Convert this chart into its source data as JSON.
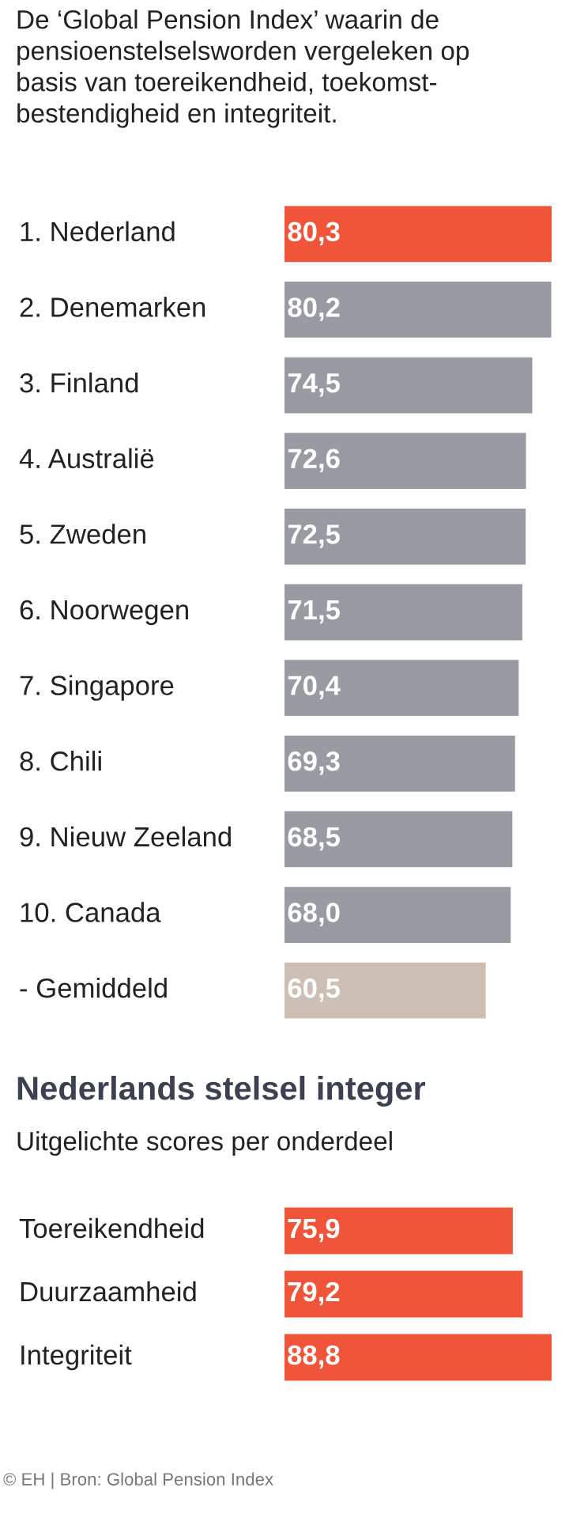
{
  "chart_data": [
    {
      "type": "bar",
      "orientation": "horizontal",
      "title": "De ‘Global Pension Index’ waarin de\npensioenstelselsworden vergeleken op\nbasis van toereikendheid, toekomst-\nbestendigheid en integriteit.",
      "categories": [
        "1. Nederland",
        "2. Denemarken",
        "3. Finland",
        "4. Australië",
        "5. Zweden",
        "6. Noorwegen",
        "7. Singapore",
        "8. Chili",
        "9. Nieuw Zeeland",
        "10. Canada",
        "- Gemiddeld"
      ],
      "values": [
        80.3,
        80.2,
        74.5,
        72.6,
        72.5,
        71.5,
        70.4,
        69.3,
        68.5,
        68.0,
        60.5
      ],
      "value_labels": [
        "80,3",
        "80,2",
        "74,5",
        "72,6",
        "72,5",
        "71,5",
        "70,4",
        "69,3",
        "68,5",
        "68,0",
        "60,5"
      ],
      "colors": [
        "#f0553a",
        "#999ba3",
        "#999ba3",
        "#999ba3",
        "#999ba3",
        "#999ba3",
        "#999ba3",
        "#999ba3",
        "#999ba3",
        "#999ba3",
        "#cdbfb4"
      ]
    },
    {
      "type": "bar",
      "orientation": "horizontal",
      "title": "Nederlands stelsel integer",
      "subtitle": "Uitgelichte scores per onderdeel",
      "categories": [
        "Toereikendheid",
        "Duurzaamheid",
        "Integriteit"
      ],
      "values": [
        75.9,
        79.2,
        88.8
      ],
      "value_labels": [
        "75,9",
        "79,2",
        "88,8"
      ],
      "colors": [
        "#f0553a",
        "#f0553a",
        "#f0553a"
      ],
      "annotations": [
        "© EH | Bron: Global Pension Index"
      ]
    }
  ]
}
